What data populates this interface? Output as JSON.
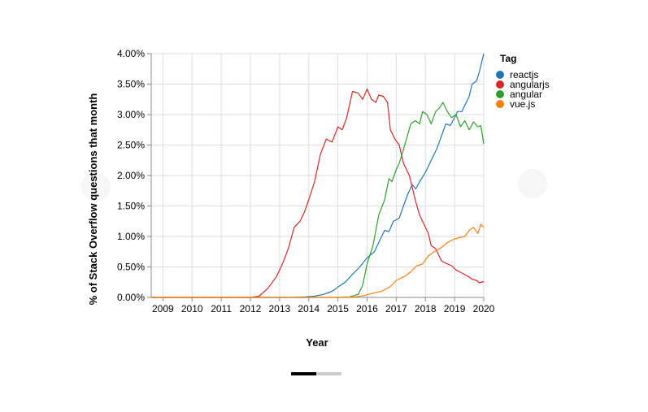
{
  "chart_data": {
    "type": "line",
    "xlabel": "Year",
    "ylabel": "% of Stack Overflow questions that month",
    "xlim": [
      2008.6,
      2020
    ],
    "ylim": [
      0,
      4
    ],
    "x_ticks": [
      "2009",
      "2010",
      "2011",
      "2012",
      "2013",
      "2014",
      "2015",
      "2016",
      "2017",
      "2018",
      "2019",
      "2020"
    ],
    "y_ticks": [
      "0.00%",
      "0.50%",
      "1.00%",
      "1.50%",
      "2.00%",
      "2.50%",
      "3.00%",
      "3.50%",
      "4.00%"
    ],
    "grid": true,
    "legend": {
      "title": "Tag",
      "position": "right"
    },
    "series": [
      {
        "name": "reactjs",
        "color": "#1f77b4",
        "points": [
          [
            2008.6,
            0
          ],
          [
            2013.4,
            0
          ],
          [
            2013.9,
            0.01
          ],
          [
            2014.2,
            0.02
          ],
          [
            2014.5,
            0.05
          ],
          [
            2014.8,
            0.1
          ],
          [
            2015.0,
            0.17
          ],
          [
            2015.25,
            0.25
          ],
          [
            2015.5,
            0.38
          ],
          [
            2015.75,
            0.5
          ],
          [
            2016.0,
            0.65
          ],
          [
            2016.25,
            0.75
          ],
          [
            2016.45,
            0.95
          ],
          [
            2016.6,
            1.1
          ],
          [
            2016.75,
            1.08
          ],
          [
            2016.9,
            1.25
          ],
          [
            2017.1,
            1.3
          ],
          [
            2017.25,
            1.5
          ],
          [
            2017.4,
            1.7
          ],
          [
            2017.55,
            1.85
          ],
          [
            2017.67,
            1.78
          ],
          [
            2017.8,
            1.9
          ],
          [
            2018.0,
            2.05
          ],
          [
            2018.2,
            2.25
          ],
          [
            2018.4,
            2.45
          ],
          [
            2018.55,
            2.65
          ],
          [
            2018.7,
            2.85
          ],
          [
            2018.85,
            2.82
          ],
          [
            2019.0,
            2.95
          ],
          [
            2019.1,
            3.05
          ],
          [
            2019.25,
            3.05
          ],
          [
            2019.4,
            3.2
          ],
          [
            2019.5,
            3.3
          ],
          [
            2019.6,
            3.5
          ],
          [
            2019.75,
            3.55
          ],
          [
            2019.85,
            3.7
          ],
          [
            2020.0,
            4.0
          ]
        ]
      },
      {
        "name": "angularjs",
        "color": "#d62728",
        "points": [
          [
            2008.6,
            0
          ],
          [
            2012.0,
            0
          ],
          [
            2012.3,
            0.02
          ],
          [
            2012.6,
            0.15
          ],
          [
            2012.9,
            0.35
          ],
          [
            2013.1,
            0.55
          ],
          [
            2013.3,
            0.8
          ],
          [
            2013.5,
            1.15
          ],
          [
            2013.7,
            1.25
          ],
          [
            2013.85,
            1.4
          ],
          [
            2014.0,
            1.6
          ],
          [
            2014.2,
            1.9
          ],
          [
            2014.4,
            2.35
          ],
          [
            2014.6,
            2.6
          ],
          [
            2014.8,
            2.55
          ],
          [
            2015.0,
            2.8
          ],
          [
            2015.15,
            2.75
          ],
          [
            2015.3,
            2.95
          ],
          [
            2015.5,
            3.38
          ],
          [
            2015.7,
            3.35
          ],
          [
            2015.85,
            3.25
          ],
          [
            2016.0,
            3.42
          ],
          [
            2016.15,
            3.25
          ],
          [
            2016.3,
            3.2
          ],
          [
            2016.4,
            3.32
          ],
          [
            2016.55,
            3.3
          ],
          [
            2016.7,
            3.2
          ],
          [
            2016.8,
            2.75
          ],
          [
            2016.95,
            2.6
          ],
          [
            2017.1,
            2.5
          ],
          [
            2017.25,
            2.2
          ],
          [
            2017.45,
            2.0
          ],
          [
            2017.65,
            1.6
          ],
          [
            2017.8,
            1.35
          ],
          [
            2017.95,
            1.2
          ],
          [
            2018.1,
            1.05
          ],
          [
            2018.2,
            0.85
          ],
          [
            2018.35,
            0.8
          ],
          [
            2018.55,
            0.6
          ],
          [
            2018.75,
            0.55
          ],
          [
            2018.9,
            0.52
          ],
          [
            2019.05,
            0.45
          ],
          [
            2019.25,
            0.4
          ],
          [
            2019.45,
            0.35
          ],
          [
            2019.6,
            0.3
          ],
          [
            2019.75,
            0.28
          ],
          [
            2019.85,
            0.24
          ],
          [
            2020.0,
            0.26
          ]
        ]
      },
      {
        "name": "angular",
        "color": "#2ca02c",
        "points": [
          [
            2008.6,
            0
          ],
          [
            2015.0,
            0
          ],
          [
            2015.4,
            0.01
          ],
          [
            2015.7,
            0.05
          ],
          [
            2015.85,
            0.2
          ],
          [
            2016.0,
            0.55
          ],
          [
            2016.2,
            0.85
          ],
          [
            2016.4,
            1.35
          ],
          [
            2016.6,
            1.6
          ],
          [
            2016.75,
            1.95
          ],
          [
            2016.85,
            1.9
          ],
          [
            2017.0,
            2.1
          ],
          [
            2017.1,
            2.2
          ],
          [
            2017.2,
            2.35
          ],
          [
            2017.35,
            2.6
          ],
          [
            2017.5,
            2.85
          ],
          [
            2017.65,
            2.9
          ],
          [
            2017.8,
            2.85
          ],
          [
            2017.9,
            3.05
          ],
          [
            2018.05,
            3.0
          ],
          [
            2018.2,
            2.85
          ],
          [
            2018.35,
            3.05
          ],
          [
            2018.5,
            3.12
          ],
          [
            2018.6,
            3.2
          ],
          [
            2018.75,
            3.05
          ],
          [
            2018.9,
            2.95
          ],
          [
            2019.05,
            3.0
          ],
          [
            2019.2,
            2.8
          ],
          [
            2019.35,
            2.9
          ],
          [
            2019.5,
            2.75
          ],
          [
            2019.65,
            2.88
          ],
          [
            2019.8,
            2.8
          ],
          [
            2019.9,
            2.82
          ],
          [
            2020.0,
            2.52
          ]
        ]
      },
      {
        "name": "vue.js",
        "color": "#ff7f0e",
        "points": [
          [
            2008.6,
            0
          ],
          [
            2015.3,
            0
          ],
          [
            2015.6,
            0.01
          ],
          [
            2015.9,
            0.03
          ],
          [
            2016.2,
            0.07
          ],
          [
            2016.5,
            0.1
          ],
          [
            2016.8,
            0.18
          ],
          [
            2017.0,
            0.28
          ],
          [
            2017.3,
            0.35
          ],
          [
            2017.5,
            0.42
          ],
          [
            2017.7,
            0.52
          ],
          [
            2017.9,
            0.55
          ],
          [
            2018.1,
            0.68
          ],
          [
            2018.3,
            0.75
          ],
          [
            2018.55,
            0.82
          ],
          [
            2018.75,
            0.9
          ],
          [
            2018.95,
            0.95
          ],
          [
            2019.15,
            0.98
          ],
          [
            2019.35,
            1.0
          ],
          [
            2019.5,
            1.1
          ],
          [
            2019.65,
            1.15
          ],
          [
            2019.8,
            1.05
          ],
          [
            2019.9,
            1.2
          ],
          [
            2020.0,
            1.15
          ]
        ]
      }
    ]
  }
}
